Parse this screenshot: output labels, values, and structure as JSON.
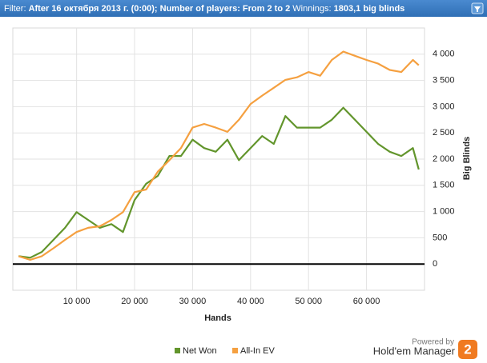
{
  "header": {
    "filter_label": "Filter:",
    "filter_value": "After 16 октября 2013 г. (0:00); Number of players: From 2 to 2",
    "winnings_label": "Winnings:",
    "winnings_value": "1803,1 big blinds"
  },
  "branding": {
    "powered_by": "Powered by",
    "product": "Hold'em Manager",
    "logo": "2"
  },
  "chart_data": {
    "type": "line",
    "x_label": "Hands",
    "y_label": "Big Blinds",
    "x": [
      0,
      2000,
      4000,
      6000,
      8000,
      10000,
      12000,
      14000,
      16000,
      18000,
      20000,
      22000,
      24000,
      26000,
      28000,
      30000,
      32000,
      34000,
      36000,
      38000,
      40000,
      42000,
      44000,
      46000,
      48000,
      50000,
      52000,
      54000,
      56000,
      58000,
      60000,
      62000,
      64000,
      66000,
      68000,
      69000
    ],
    "series": [
      {
        "name": "Net Won",
        "color": "#62952c",
        "values": [
          150,
          120,
          230,
          460,
          690,
          990,
          840,
          690,
          760,
          610,
          1220,
          1530,
          1680,
          2060,
          2060,
          2370,
          2210,
          2140,
          2370,
          1980,
          2210,
          2440,
          2290,
          2820,
          2600,
          2600,
          2600,
          2750,
          2980,
          2750,
          2520,
          2290,
          2140,
          2060,
          2210,
          1803
        ]
      },
      {
        "name": "All-In EV",
        "color": "#f5a040",
        "values": [
          150,
          80,
          150,
          300,
          460,
          610,
          690,
          720,
          840,
          990,
          1370,
          1420,
          1760,
          1980,
          2210,
          2600,
          2670,
          2600,
          2520,
          2750,
          3050,
          3210,
          3360,
          3510,
          3560,
          3660,
          3590,
          3890,
          4050,
          3970,
          3890,
          3820,
          3700,
          3660,
          3890,
          3790
        ]
      }
    ],
    "xlim": [
      -1000,
      70000
    ],
    "ylim": [
      -500,
      4500
    ],
    "xticks": [
      {
        "value": 10000,
        "label": "10 000"
      },
      {
        "value": 20000,
        "label": "20 000"
      },
      {
        "value": 30000,
        "label": "30 000"
      },
      {
        "value": 40000,
        "label": "40 000"
      },
      {
        "value": 50000,
        "label": "50 000"
      },
      {
        "value": 60000,
        "label": "60 000"
      }
    ],
    "yticks": [
      0,
      500,
      {
        "value": 1000,
        "label": "1 000"
      },
      {
        "value": 1500,
        "label": "1 500"
      },
      {
        "value": 2000,
        "label": "2 000"
      },
      {
        "value": 2500,
        "label": "2 500"
      },
      {
        "value": 3000,
        "label": "3 000"
      },
      {
        "value": 3500,
        "label": "3 500"
      },
      {
        "value": 4000,
        "label": "4 000"
      }
    ],
    "grid": true
  }
}
